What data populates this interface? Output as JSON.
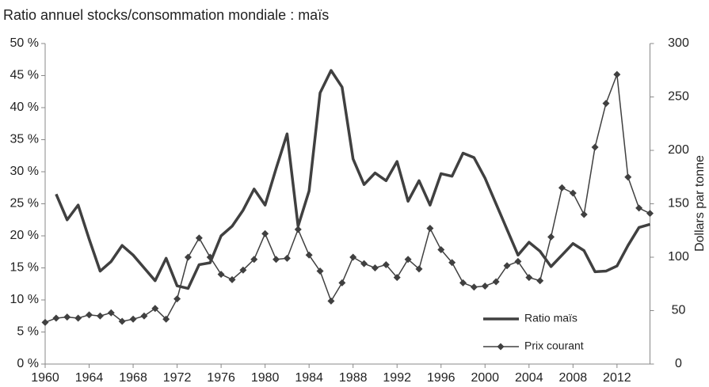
{
  "chart_data": {
    "type": "line",
    "title": "Ratio annuel stocks/consommation mondiale : maïs",
    "y2_label": "Dollars par tonne",
    "x": [
      1960,
      1961,
      1962,
      1963,
      1964,
      1965,
      1966,
      1967,
      1968,
      1969,
      1970,
      1971,
      1972,
      1973,
      1974,
      1975,
      1976,
      1977,
      1978,
      1979,
      1980,
      1981,
      1982,
      1983,
      1984,
      1985,
      1986,
      1987,
      1988,
      1989,
      1990,
      1991,
      1992,
      1993,
      1994,
      1995,
      1996,
      1997,
      1998,
      1999,
      2000,
      2001,
      2002,
      2003,
      2004,
      2005,
      2006,
      2007,
      2008,
      2009,
      2010,
      2011,
      2012,
      2013,
      2014,
      2015
    ],
    "xlim": [
      1960,
      2015
    ],
    "xticks": [
      1960,
      1964,
      1968,
      1972,
      1976,
      1980,
      1984,
      1988,
      1992,
      1996,
      2000,
      2004,
      2008,
      2012
    ],
    "ylim": [
      0,
      50
    ],
    "yticks": [
      {
        "value": 0,
        "label": "0 %"
      },
      {
        "value": 5,
        "label": "5 %"
      },
      {
        "value": 10,
        "label": "10 %"
      },
      {
        "value": 15,
        "label": "15 %"
      },
      {
        "value": 20,
        "label": "20 %"
      },
      {
        "value": 25,
        "label": "25 %"
      },
      {
        "value": 30,
        "label": "30 %"
      },
      {
        "value": 35,
        "label": "35 %"
      },
      {
        "value": 40,
        "label": "40 %"
      },
      {
        "value": 45,
        "label": "45 %"
      },
      {
        "value": 50,
        "label": "50 %"
      }
    ],
    "y2lim": [
      0,
      300
    ],
    "y2ticks": [
      0,
      50,
      100,
      150,
      200,
      250,
      300
    ],
    "legend": "lower right",
    "series": [
      {
        "name": "Ratio maïs",
        "color": "#404040",
        "values": [
          null,
          26.5,
          22.5,
          24.8,
          19.5,
          14.5,
          16,
          18.5,
          17,
          15,
          13,
          16.5,
          12.2,
          11.8,
          15.5,
          15.8,
          20,
          21.5,
          24,
          27.3,
          24.8,
          30.5,
          35.9,
          21.5,
          27,
          42.3,
          45.8,
          43.2,
          32,
          28,
          29.8,
          28.6,
          31.6,
          25.4,
          28.6,
          24.8,
          29.7,
          29.3,
          32.9,
          32.2,
          29,
          25,
          21,
          17,
          19,
          17.6,
          15.2,
          17,
          18.8,
          17.7,
          14.4,
          14.5,
          15.3,
          18.5,
          21.3,
          21.8
        ]
      },
      {
        "name": "Prix courant",
        "color": "#404040",
        "axis": "y2",
        "values": [
          39,
          43,
          44,
          43,
          46,
          45,
          48,
          40,
          42,
          45,
          52,
          42,
          61,
          100,
          118,
          100,
          84,
          79,
          88,
          98,
          122,
          98,
          99,
          126,
          102,
          87,
          59,
          76,
          100,
          94,
          90,
          93,
          81,
          98,
          89,
          127,
          107,
          95,
          76,
          72,
          73,
          77,
          92,
          96,
          81,
          78,
          119,
          165,
          160,
          140,
          203,
          244,
          271,
          175,
          146,
          141
        ]
      }
    ]
  }
}
